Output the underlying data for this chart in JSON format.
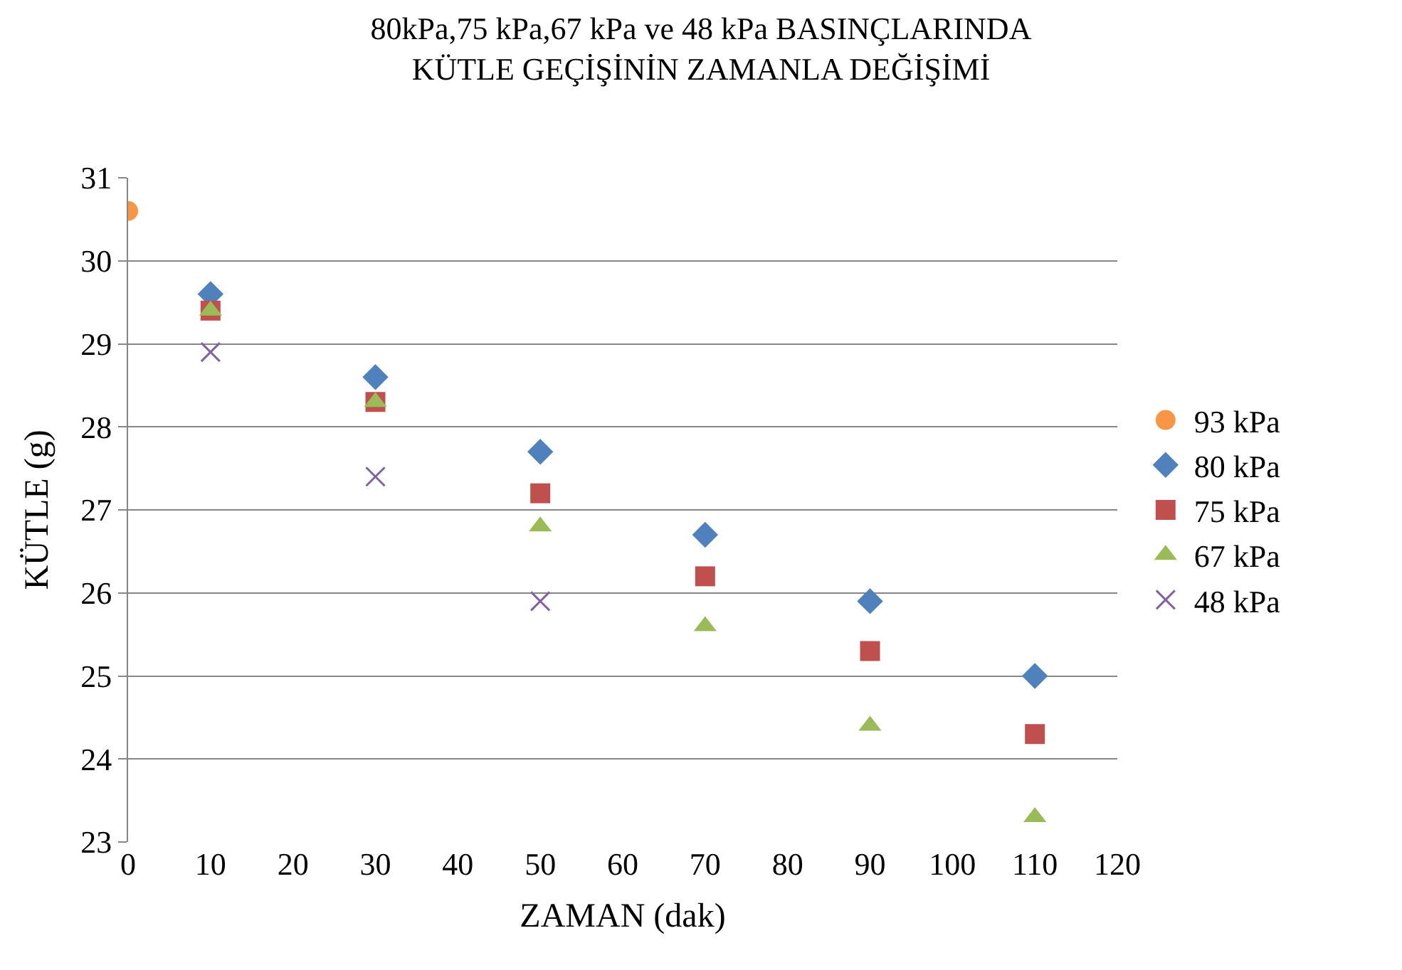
{
  "chart_data": {
    "type": "scatter",
    "title": "80kPa,75 kPa,67 kPa ve 48 kPa BASINÇLARINDA\nKÜTLE GEÇİŞİNİN ZAMANLA DEĞİŞİMİ",
    "xlabel": "ZAMAN (dak)",
    "ylabel": "KÜTLE (g)",
    "xlim": [
      0,
      120
    ],
    "xticks": [
      0,
      10,
      20,
      30,
      40,
      50,
      60,
      70,
      80,
      90,
      100,
      110,
      120
    ],
    "ylim": [
      23,
      31
    ],
    "yticks": [
      23,
      24,
      25,
      26,
      27,
      28,
      29,
      30,
      31
    ],
    "grid": "y",
    "legend": "right",
    "series": [
      {
        "name": "93 kPa",
        "color": "#f79646",
        "marker": "circle",
        "x": [
          0
        ],
        "values": [
          30.6
        ]
      },
      {
        "name": "80 kPa",
        "color": "#4f81bd",
        "marker": "diamond",
        "x": [
          10,
          30,
          50,
          70,
          90,
          110
        ],
        "values": [
          29.6,
          28.6,
          27.7,
          26.7,
          25.9,
          25.0
        ]
      },
      {
        "name": "75 kPa",
        "color": "#c0504d",
        "marker": "square",
        "x": [
          10,
          30,
          50,
          70,
          90,
          110
        ],
        "values": [
          29.4,
          28.3,
          27.2,
          26.2,
          25.3,
          24.3
        ]
      },
      {
        "name": "67 kPa",
        "color": "#9bbb59",
        "marker": "triangle",
        "x": [
          10,
          30,
          50,
          70,
          90,
          110
        ],
        "values": [
          29.4,
          28.3,
          26.8,
          25.6,
          24.4,
          23.3
        ]
      },
      {
        "name": "48 kPa",
        "color": "#8064a2",
        "marker": "cross",
        "x": [
          10,
          30,
          50
        ],
        "values": [
          28.9,
          27.4,
          25.9
        ]
      }
    ]
  }
}
